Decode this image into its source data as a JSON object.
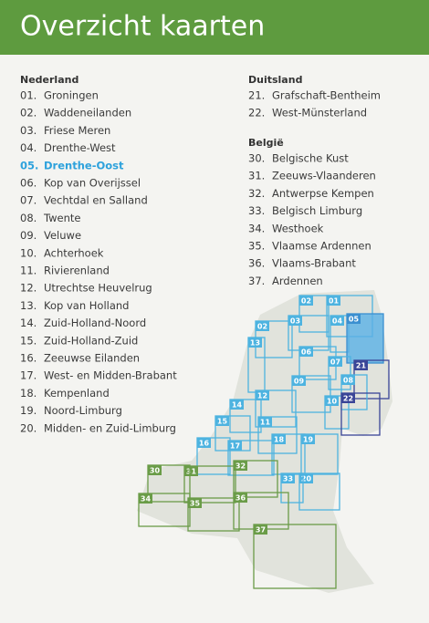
{
  "header": {
    "title": "Overzicht kaarten"
  },
  "sections": [
    {
      "heading": "Nederland",
      "items": [
        {
          "num": "01.",
          "name": "Groningen"
        },
        {
          "num": "02.",
          "name": "Waddeneilanden"
        },
        {
          "num": "03.",
          "name": "Friese Meren"
        },
        {
          "num": "04.",
          "name": "Drenthe-West"
        },
        {
          "num": "05.",
          "name": "Drenthe-Oost"
        },
        {
          "num": "06.",
          "name": "Kop van Overijssel"
        },
        {
          "num": "07.",
          "name": "Vechtdal en Salland"
        },
        {
          "num": "08.",
          "name": "Twente"
        },
        {
          "num": "09.",
          "name": "Veluwe"
        },
        {
          "num": "10.",
          "name": "Achterhoek"
        },
        {
          "num": "11.",
          "name": "Rivierenland"
        },
        {
          "num": "12.",
          "name": "Utrechtse Heuvelrug"
        },
        {
          "num": "13.",
          "name": "Kop van Holland"
        },
        {
          "num": "14.",
          "name": "Zuid-Holland-Noord"
        },
        {
          "num": "15.",
          "name": "Zuid-Holland-Zuid"
        },
        {
          "num": "16.",
          "name": "Zeeuwse Eilanden"
        },
        {
          "num": "17.",
          "name": "West- en Midden-Brabant"
        },
        {
          "num": "18.",
          "name": "Kempenland"
        },
        {
          "num": "19.",
          "name": "Noord-Limburg"
        },
        {
          "num": "20.",
          "name": "Midden- en Zuid-Limburg"
        }
      ]
    },
    {
      "heading": "Duitsland",
      "items": [
        {
          "num": "21.",
          "name": "Grafschaft-Bentheim"
        },
        {
          "num": "22.",
          "name": "West-Münsterland"
        }
      ]
    },
    {
      "heading": "België",
      "items": [
        {
          "num": "30.",
          "name": "Belgische Kust"
        },
        {
          "num": "31.",
          "name": "Zeeuws-Vlaanderen"
        },
        {
          "num": "32.",
          "name": "Antwerpse Kempen"
        },
        {
          "num": "33.",
          "name": "Belgisch Limburg"
        },
        {
          "num": "34.",
          "name": "Westhoek"
        },
        {
          "num": "35.",
          "name": "Vlaamse Ardennen"
        },
        {
          "num": "36.",
          "name": "Vlaams-Brabant"
        },
        {
          "num": "37.",
          "name": "Ardennen"
        }
      ]
    }
  ],
  "map": {
    "labels": [
      "01",
      "02",
      "02",
      "03",
      "04",
      "05",
      "06",
      "07",
      "21",
      "08",
      "09",
      "10",
      "22",
      "13",
      "12",
      "14",
      "11",
      "15",
      "16",
      "17",
      "18",
      "19",
      "20",
      "33",
      "32",
      "31",
      "30",
      "34",
      "35",
      "36",
      "37"
    ]
  }
}
